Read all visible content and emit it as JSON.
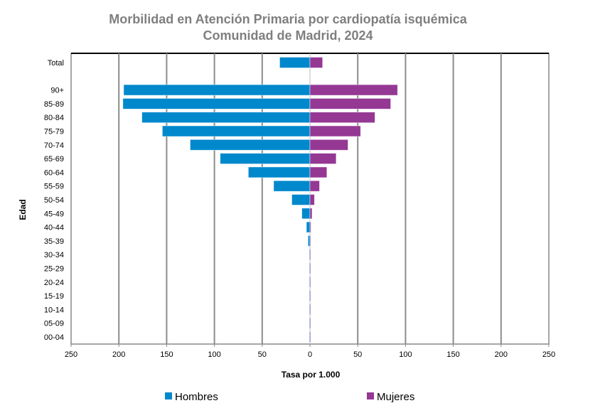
{
  "chart_data": {
    "type": "bar",
    "orientation": "horizontal",
    "layout": "population-pyramid",
    "title": "Morbilidad en Atención Primaria por cardiopatía isquémica",
    "subtitle": "Comunidad de Madrid, 2024",
    "xlabel": "Tasa por 1.000",
    "ylabel": "Edad",
    "xlim": [
      -250,
      250
    ],
    "xticks": [
      -250,
      -200,
      -150,
      -100,
      -50,
      0,
      50,
      100,
      150,
      200,
      250
    ],
    "xtick_labels": [
      "250",
      "200",
      "150",
      "100",
      "50",
      "0",
      "50",
      "100",
      "150",
      "200",
      "250"
    ],
    "grid": true,
    "legend_position": "bottom",
    "categories": [
      "Total",
      "90+",
      "85-89",
      "80-84",
      "75-79",
      "70-74",
      "65-69",
      "60-64",
      "55-59",
      "50-54",
      "45-49",
      "40-44",
      "35-39",
      "30-34",
      "25-29",
      "20-24",
      "15-19",
      "10-14",
      "05-09",
      "00-04"
    ],
    "series": [
      {
        "name": "Hombres",
        "color": "#0088cc",
        "side": "left",
        "values": [
          31.7,
          195,
          195.8,
          175.9,
          154.5,
          125.4,
          94,
          64.5,
          38,
          19,
          8.5,
          3.7,
          2,
          0.5,
          0.3,
          0.2,
          0.1,
          0.1,
          0.1,
          0.1
        ]
      },
      {
        "name": "Mujeres",
        "color": "#943894",
        "side": "right",
        "values": [
          13.2,
          91.7,
          84.5,
          68,
          53,
          39.8,
          27.4,
          17.7,
          10,
          4.7,
          2.2,
          1,
          0.3,
          0.2,
          0.1,
          0.1,
          0.1,
          0.1,
          0.1,
          0.1
        ]
      }
    ]
  }
}
